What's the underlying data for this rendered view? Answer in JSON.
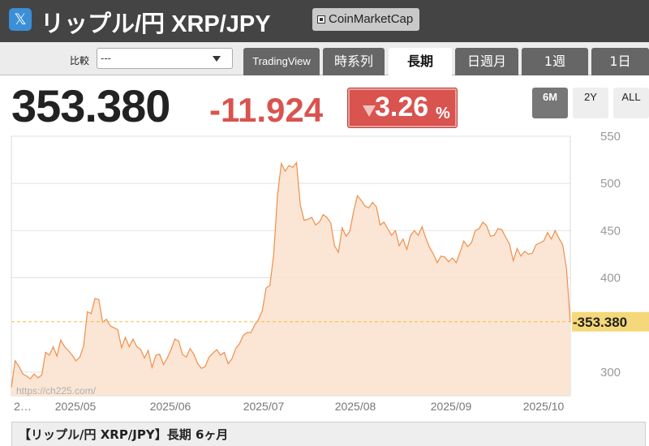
{
  "header": {
    "x_logo": "𝕏",
    "title": "リップル/円 XRP/JPY",
    "cmc_label": "CoinMarketCap"
  },
  "tabbar": {
    "compare_label": "比較",
    "compare_value": "---",
    "tabs": [
      {
        "label": "TradingView"
      },
      {
        "label": "時系列"
      },
      {
        "label": "長期"
      },
      {
        "label": "日週月"
      },
      {
        "label": "1週"
      },
      {
        "label": "1日"
      }
    ]
  },
  "quote": {
    "price": "353.380",
    "change": "-11.924",
    "percent": "3.26",
    "percent_sign": "%"
  },
  "ranges": [
    "6M",
    "2Y",
    "ALL"
  ],
  "colors": {
    "header_bg": "#444444",
    "down_red": "#d9534f",
    "line_orange": "#ef8f4a",
    "fill_orange": "#fbe2cf",
    "marker_yellow": "#f5d87a"
  },
  "chart_data": {
    "type": "area",
    "ylim": [
      275,
      550
    ],
    "y_ticks": [
      "550",
      "500",
      "450",
      "400",
      "300"
    ],
    "x_tick_labels": [
      "2…",
      "2025/05",
      "2025/06",
      "2025/07",
      "2025/08",
      "2025/09",
      "2025/10"
    ],
    "current_value_label": "353.380",
    "watermark": "https://ch225.com/",
    "values": [
      284,
      312,
      306,
      298,
      296,
      293,
      298,
      294,
      297,
      321,
      318,
      327,
      317,
      334,
      327,
      323,
      318,
      312,
      316,
      328,
      364,
      362,
      378,
      377,
      353,
      356,
      349,
      347,
      345,
      326,
      337,
      327,
      335,
      327,
      324,
      315,
      323,
      305,
      318,
      319,
      308,
      315,
      324,
      335,
      333,
      319,
      316,
      325,
      319,
      309,
      304,
      306,
      316,
      320,
      324,
      318,
      321,
      309,
      314,
      325,
      330,
      339,
      342,
      342,
      350,
      356,
      365,
      389,
      392,
      425,
      488,
      521,
      513,
      519,
      517,
      522,
      477,
      461,
      462,
      464,
      456,
      459,
      467,
      464,
      458,
      434,
      427,
      453,
      444,
      449,
      470,
      487,
      482,
      476,
      474,
      480,
      475,
      456,
      459,
      452,
      445,
      450,
      434,
      441,
      430,
      445,
      450,
      445,
      454,
      442,
      432,
      425,
      416,
      423,
      422,
      417,
      421,
      416,
      427,
      439,
      433,
      437,
      450,
      452,
      459,
      455,
      444,
      445,
      452,
      451,
      443,
      436,
      418,
      431,
      423,
      428,
      425,
      426,
      435,
      437,
      439,
      448,
      441,
      450,
      442,
      435,
      410,
      353
    ]
  },
  "caption": "【リップル/円 XRP/JPY】長期 6ヶ月"
}
